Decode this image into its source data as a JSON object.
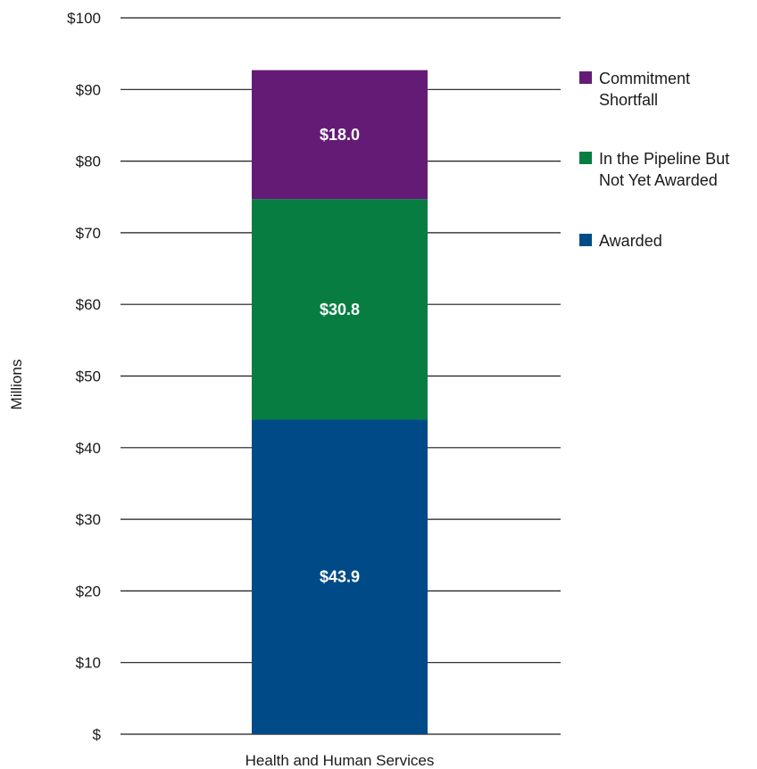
{
  "chart_data": {
    "type": "bar",
    "stacked": true,
    "categories": [
      "Health and Human Services"
    ],
    "ylabel": "Millions",
    "xlabel": "",
    "ylim": [
      0,
      100
    ],
    "y_ticks": [
      0,
      10,
      20,
      30,
      40,
      50,
      60,
      70,
      80,
      90,
      100
    ],
    "y_tick_labels": [
      "$",
      "$10",
      "$20",
      "$30",
      "$40",
      "$50",
      "$60",
      "$70",
      "$80",
      "$90",
      "$100"
    ],
    "grid": true,
    "legend_position": "right",
    "series": [
      {
        "name": "Awarded",
        "values": [
          43.9
        ],
        "value_labels": [
          "$43.9"
        ],
        "color": "#004b87"
      },
      {
        "name": "In the Pipeline But Not Yet Awarded",
        "values": [
          30.8
        ],
        "value_labels": [
          "$30.8"
        ],
        "color": "#077d42"
      },
      {
        "name": "Commitment Shortfall",
        "values": [
          18.0
        ],
        "value_labels": [
          "$18.0"
        ],
        "color": "#641b76"
      }
    ],
    "legend": [
      {
        "lines": [
          "Commitment",
          "Shortfall"
        ],
        "color": "#641b76"
      },
      {
        "lines": [
          "In the Pipeline But",
          "Not Yet Awarded"
        ],
        "color": "#077d42"
      },
      {
        "lines": [
          "Awarded"
        ],
        "color": "#004b87"
      }
    ]
  }
}
